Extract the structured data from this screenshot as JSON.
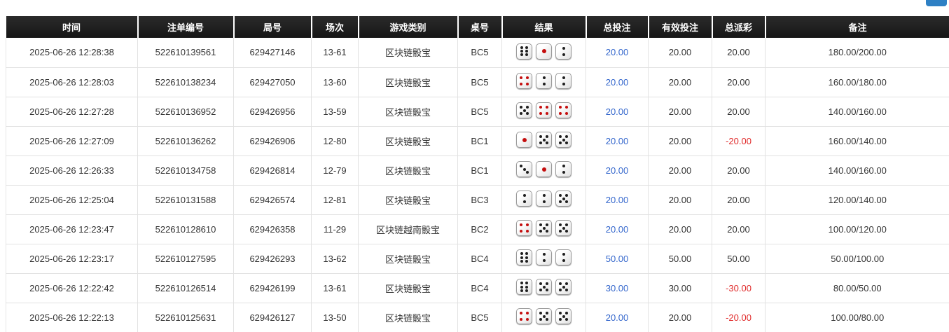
{
  "page": {
    "top_button_fragment": {
      "color": "#2e80c4"
    }
  },
  "colors": {
    "header_bg": "#1c1c1c",
    "header_text": "#ffffff",
    "cell_text": "#333333",
    "bet_amount_blue": "#3366cc",
    "negative_red": "#e02a2a",
    "pip_black": "#1e1e1e",
    "pip_red": "#c40d0d",
    "dice_red_values": [
      1,
      4
    ]
  },
  "table": {
    "columns": [
      {
        "key": "time",
        "label": "时间"
      },
      {
        "key": "bet_id",
        "label": "注单编号"
      },
      {
        "key": "round_id",
        "label": "局号"
      },
      {
        "key": "session",
        "label": "场次"
      },
      {
        "key": "game_type",
        "label": "游戏类别"
      },
      {
        "key": "table_no",
        "label": "桌号"
      },
      {
        "key": "result",
        "label": "结果"
      },
      {
        "key": "total_bet",
        "label": "总投注"
      },
      {
        "key": "valid_bet",
        "label": "有效投注"
      },
      {
        "key": "total_payout",
        "label": "总派彩"
      },
      {
        "key": "remark",
        "label": "备注"
      }
    ],
    "rows": [
      {
        "time": "2025-06-26 12:28:38",
        "bet_id": "522610139561",
        "round_id": "629427146",
        "session": "13-61",
        "game_type": "区块链骰宝",
        "table_no": "BC5",
        "dice": [
          6,
          1,
          2
        ],
        "total_bet": "20.00",
        "valid_bet": "20.00",
        "total_payout": "20.00",
        "remark": "180.00/200.00"
      },
      {
        "time": "2025-06-26 12:28:03",
        "bet_id": "522610138234",
        "round_id": "629427050",
        "session": "13-60",
        "game_type": "区块链骰宝",
        "table_no": "BC5",
        "dice": [
          4,
          2,
          2
        ],
        "total_bet": "20.00",
        "valid_bet": "20.00",
        "total_payout": "20.00",
        "remark": "160.00/180.00"
      },
      {
        "time": "2025-06-26 12:27:28",
        "bet_id": "522610136952",
        "round_id": "629426956",
        "session": "13-59",
        "game_type": "区块链骰宝",
        "table_no": "BC5",
        "dice": [
          5,
          4,
          4
        ],
        "total_bet": "20.00",
        "valid_bet": "20.00",
        "total_payout": "20.00",
        "remark": "140.00/160.00"
      },
      {
        "time": "2025-06-26 12:27:09",
        "bet_id": "522610136262",
        "round_id": "629426906",
        "session": "12-80",
        "game_type": "区块链骰宝",
        "table_no": "BC1",
        "dice": [
          1,
          5,
          5
        ],
        "total_bet": "20.00",
        "valid_bet": "20.00",
        "total_payout": "-20.00",
        "remark": "160.00/140.00"
      },
      {
        "time": "2025-06-26 12:26:33",
        "bet_id": "522610134758",
        "round_id": "629426814",
        "session": "12-79",
        "game_type": "区块链骰宝",
        "table_no": "BC1",
        "dice": [
          3,
          1,
          2
        ],
        "total_bet": "20.00",
        "valid_bet": "20.00",
        "total_payout": "20.00",
        "remark": "140.00/160.00"
      },
      {
        "time": "2025-06-26 12:25:04",
        "bet_id": "522610131588",
        "round_id": "629426574",
        "session": "12-81",
        "game_type": "区块链骰宝",
        "table_no": "BC3",
        "dice": [
          2,
          2,
          5
        ],
        "total_bet": "20.00",
        "valid_bet": "20.00",
        "total_payout": "20.00",
        "remark": "120.00/140.00"
      },
      {
        "time": "2025-06-26 12:23:47",
        "bet_id": "522610128610",
        "round_id": "629426358",
        "session": "11-29",
        "game_type": "区块链越南骰宝",
        "table_no": "BC2",
        "dice": [
          4,
          5,
          5
        ],
        "total_bet": "20.00",
        "valid_bet": "20.00",
        "total_payout": "20.00",
        "remark": "100.00/120.00"
      },
      {
        "time": "2025-06-26 12:23:17",
        "bet_id": "522610127595",
        "round_id": "629426293",
        "session": "13-62",
        "game_type": "区块链骰宝",
        "table_no": "BC4",
        "dice": [
          6,
          2,
          2
        ],
        "total_bet": "50.00",
        "valid_bet": "50.00",
        "total_payout": "50.00",
        "remark": "50.00/100.00"
      },
      {
        "time": "2025-06-26 12:22:42",
        "bet_id": "522610126514",
        "round_id": "629426199",
        "session": "13-61",
        "game_type": "区块链骰宝",
        "table_no": "BC4",
        "dice": [
          6,
          5,
          5
        ],
        "total_bet": "30.00",
        "valid_bet": "30.00",
        "total_payout": "-30.00",
        "remark": "80.00/50.00"
      },
      {
        "time": "2025-06-26 12:22:13",
        "bet_id": "522610125631",
        "round_id": "629426127",
        "session": "13-50",
        "game_type": "区块链骰宝",
        "table_no": "BC5",
        "dice": [
          4,
          5,
          5
        ],
        "total_bet": "20.00",
        "valid_bet": "20.00",
        "total_payout": "-20.00",
        "remark": "100.00/80.00"
      }
    ]
  }
}
